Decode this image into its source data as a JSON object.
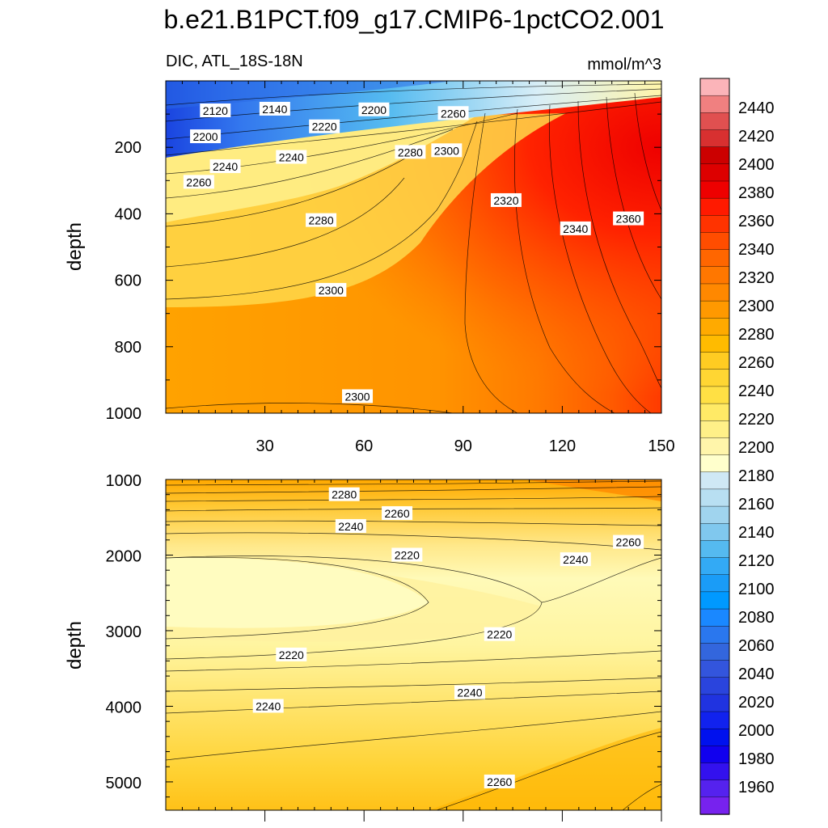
{
  "title": "b.e21.B1PCT.f09_g17.CMIP6-1pctCO2.001",
  "chart_data": [
    {
      "type": "heatmap",
      "variable": "DIC",
      "region": "ATL_18S-18N",
      "subtitle_left": "DIC, ATL_18S-18N",
      "subtitle_right": "mmol/m^3",
      "units": "mmol/m^3",
      "xlabel": "",
      "ylabel": "depth",
      "xlim": [
        0,
        150
      ],
      "ylim": [
        1000,
        0
      ],
      "xticks": [
        "30",
        "60",
        "90",
        "120",
        "150"
      ],
      "yticks": [
        "200",
        "400",
        "600",
        "800",
        "1000"
      ],
      "contour_labels": [
        {
          "text": "2120",
          "x": 15,
          "y": 90
        },
        {
          "text": "2140",
          "x": 33,
          "y": 85
        },
        {
          "text": "2200",
          "x": 63,
          "y": 87
        },
        {
          "text": "2260",
          "x": 87,
          "y": 98
        },
        {
          "text": "2220",
          "x": 48,
          "y": 138
        },
        {
          "text": "2200",
          "x": 12,
          "y": 168
        },
        {
          "text": "2240",
          "x": 38,
          "y": 230
        },
        {
          "text": "2240",
          "x": 18,
          "y": 258
        },
        {
          "text": "2280",
          "x": 74,
          "y": 215
        },
        {
          "text": "2300",
          "x": 85,
          "y": 210
        },
        {
          "text": "2260",
          "x": 10,
          "y": 305
        },
        {
          "text": "2320",
          "x": 103,
          "y": 360
        },
        {
          "text": "2280",
          "x": 47,
          "y": 420
        },
        {
          "text": "2340",
          "x": 124,
          "y": 445
        },
        {
          "text": "2360",
          "x": 140,
          "y": 415
        },
        {
          "text": "2300",
          "x": 50,
          "y": 630
        },
        {
          "text": "2300",
          "x": 58,
          "y": 950
        }
      ]
    },
    {
      "type": "heatmap",
      "variable": "DIC",
      "region": "ATL_18S-18N",
      "xlabel": "",
      "ylabel": "depth",
      "xlim": [
        0,
        150
      ],
      "ylim": [
        5375,
        1000
      ],
      "yticks": [
        "1000",
        "2000",
        "3000",
        "4000",
        "5000"
      ],
      "contour_labels": [
        {
          "text": "2280",
          "x": 54,
          "y": 1200
        },
        {
          "text": "2260",
          "x": 70,
          "y": 1450
        },
        {
          "text": "2240",
          "x": 56,
          "y": 1620
        },
        {
          "text": "2260",
          "x": 140,
          "y": 1830
        },
        {
          "text": "2220",
          "x": 73,
          "y": 2000
        },
        {
          "text": "2240",
          "x": 124,
          "y": 2060
        },
        {
          "text": "2220",
          "x": 101,
          "y": 3050
        },
        {
          "text": "2220",
          "x": 38,
          "y": 3320
        },
        {
          "text": "2240",
          "x": 92,
          "y": 3820
        },
        {
          "text": "2240",
          "x": 31,
          "y": 4000
        },
        {
          "text": "2260",
          "x": 101,
          "y": 5000
        }
      ]
    }
  ],
  "colorbar": {
    "units": "mmol/m^3",
    "labels": [
      "2440",
      "2420",
      "2400",
      "2380",
      "2360",
      "2340",
      "2320",
      "2300",
      "2280",
      "2260",
      "2240",
      "2220",
      "2200",
      "2180",
      "2160",
      "2140",
      "2120",
      "2100",
      "2080",
      "2060",
      "2040",
      "2020",
      "2000",
      "1980",
      "1960"
    ],
    "colors": [
      "#fbb4b9",
      "#f08080",
      "#e05050",
      "#d83030",
      "#cc0000",
      "#dd0000",
      "#ee0000",
      "#ff1a00",
      "#ff3300",
      "#ff4d00",
      "#ff6600",
      "#ff7700",
      "#ff8800",
      "#ff9900",
      "#ffaa00",
      "#ffbb00",
      "#ffcc22",
      "#ffd633",
      "#ffe044",
      "#ffea66",
      "#fff088",
      "#fff5aa",
      "#ffffcc",
      "#cfe8f5",
      "#b8dff2",
      "#a0d4ee",
      "#80c8ee",
      "#55baf0",
      "#33aaf5",
      "#1a9cf7",
      "#0099ff",
      "#1a88ff",
      "#2a77ee",
      "#3366dd",
      "#3355dd",
      "#2a44dd",
      "#2033e0",
      "#1122ee",
      "#0011ee",
      "#1100ee",
      "#3311ee",
      "#5522ee",
      "#7722ee"
    ]
  }
}
